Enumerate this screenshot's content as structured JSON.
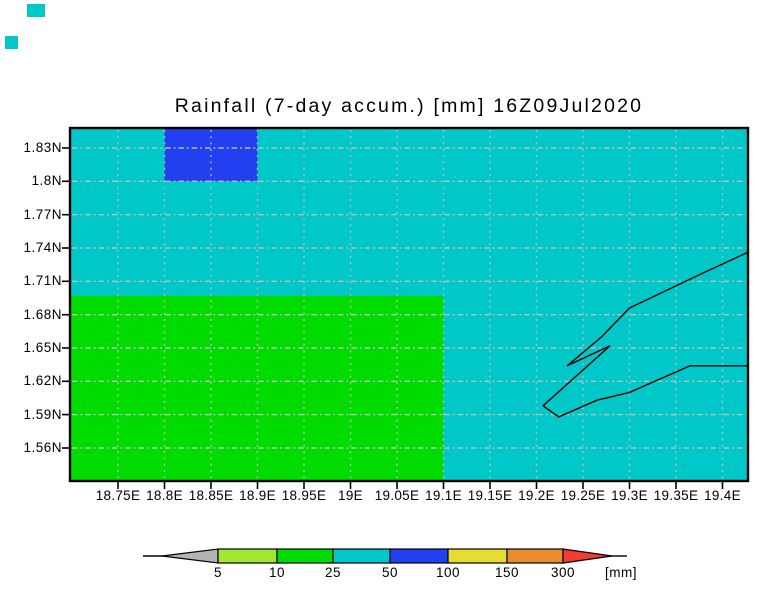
{
  "title": "Rainfall (7-day accum.) [mm] 16Z09Jul2020",
  "colors": {
    "page_background": "#ffffff",
    "sea_teal": "#00c8c8",
    "green": "#00dc00",
    "blue": "#2340f0",
    "grid": "#bebebe",
    "coastline": "#000000",
    "axis": "#000000"
  },
  "chart_data": {
    "type": "heatmap",
    "title": "Rainfall (7-day accum.) [mm] 16Z09Jul2020",
    "variable": "Rainfall (7-day accum.)",
    "unit": "mm",
    "valid_time": "16Z09Jul2020",
    "x_ticks": [
      18.75,
      18.8,
      18.85,
      18.9,
      18.95,
      19,
      19.05,
      19.1,
      19.15,
      19.2,
      19.25,
      19.3,
      19.35,
      19.4
    ],
    "x_tick_labels": [
      "18.75E",
      "18.8E",
      "18.85E",
      "18.9E",
      "18.95E",
      "19E",
      "19.05E",
      "19.1E",
      "19.15E",
      "19.2E",
      "19.25E",
      "19.3E",
      "19.35E",
      "19.4E"
    ],
    "y_ticks": [
      1.83,
      1.8,
      1.77,
      1.74,
      1.71,
      1.68,
      1.65,
      1.62,
      1.59,
      1.56
    ],
    "y_tick_labels": [
      "1.83N",
      "1.8N",
      "1.77N",
      "1.74N",
      "1.71N",
      "1.68N",
      "1.65N",
      "1.62N",
      "1.59N",
      "1.56N"
    ],
    "grid": true,
    "legend_position": "bottom colorbar",
    "cells": [
      {
        "value_bin": "25-50 mm",
        "color": "#00c8c8",
        "area": "background"
      },
      {
        "value_bin": "10-25 mm",
        "color": "#00dc00",
        "lon_range": [
          18.69,
          19.1
        ],
        "lat_range": [
          1.52,
          1.697
        ]
      },
      {
        "value_bin": "50-100 mm",
        "color": "#2340f0",
        "lon_range": [
          18.8,
          18.9
        ],
        "lat_range": [
          1.8,
          1.85
        ]
      }
    ],
    "coastline_lonlat": [
      [
        19.427,
        1.736
      ],
      [
        19.378,
        1.717
      ],
      [
        19.3,
        1.686
      ],
      [
        19.27,
        1.66
      ],
      [
        19.233,
        1.634
      ],
      [
        19.279,
        1.652
      ],
      [
        19.207,
        1.598
      ],
      [
        19.224,
        1.588
      ],
      [
        19.265,
        1.603
      ],
      [
        19.3,
        1.61
      ],
      [
        19.365,
        1.634
      ],
      [
        19.427,
        1.634
      ]
    ],
    "colorbar": {
      "levels": [
        5,
        10,
        25,
        50,
        100,
        150,
        300
      ],
      "level_labels": [
        "5",
        "10",
        "25",
        "50",
        "100",
        "150",
        "300"
      ],
      "unit_label": "[mm]",
      "below_color": "#b4b4b4",
      "segment_colors": [
        "#a0e632",
        "#00dc00",
        "#00c8c8",
        "#2340f0",
        "#e6dc32",
        "#ea8c2e"
      ],
      "above_color": "#f23c32"
    }
  }
}
